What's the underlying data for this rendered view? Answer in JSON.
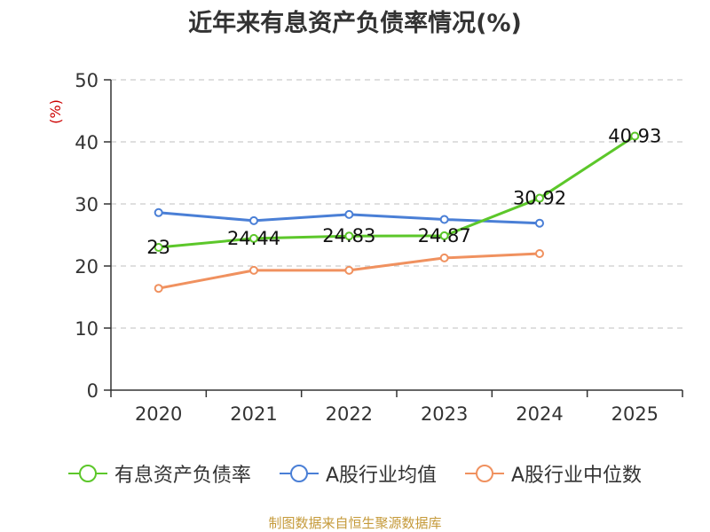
{
  "chart_data": {
    "type": "line",
    "title": "近年来有息资产负债率情况(%)",
    "ylabel": "(%)",
    "xlabel": "",
    "categories": [
      "2020",
      "2021",
      "2022",
      "2023",
      "2024",
      "2025"
    ],
    "ylim": [
      0,
      50
    ],
    "yticks": [
      0,
      10,
      20,
      30,
      40,
      50
    ],
    "grid": true,
    "legend_position": "bottom",
    "series": [
      {
        "name": "有息资产负债率",
        "color": "#5cc72a",
        "values": [
          23,
          24.44,
          24.83,
          24.87,
          30.92,
          40.93
        ],
        "labels": [
          "23",
          "24.44",
          "24.83",
          "24.87",
          "30.92",
          "40.93"
        ]
      },
      {
        "name": "A股行业均值",
        "color": "#4a7fd6",
        "values": [
          28.6,
          27.3,
          28.3,
          27.5,
          26.9,
          null
        ]
      },
      {
        "name": "A股行业中位数",
        "color": "#f0915f",
        "values": [
          16.4,
          19.3,
          19.3,
          21.3,
          22.0,
          null
        ]
      }
    ]
  },
  "source_text": "制图数据来自恒生聚源数据库"
}
